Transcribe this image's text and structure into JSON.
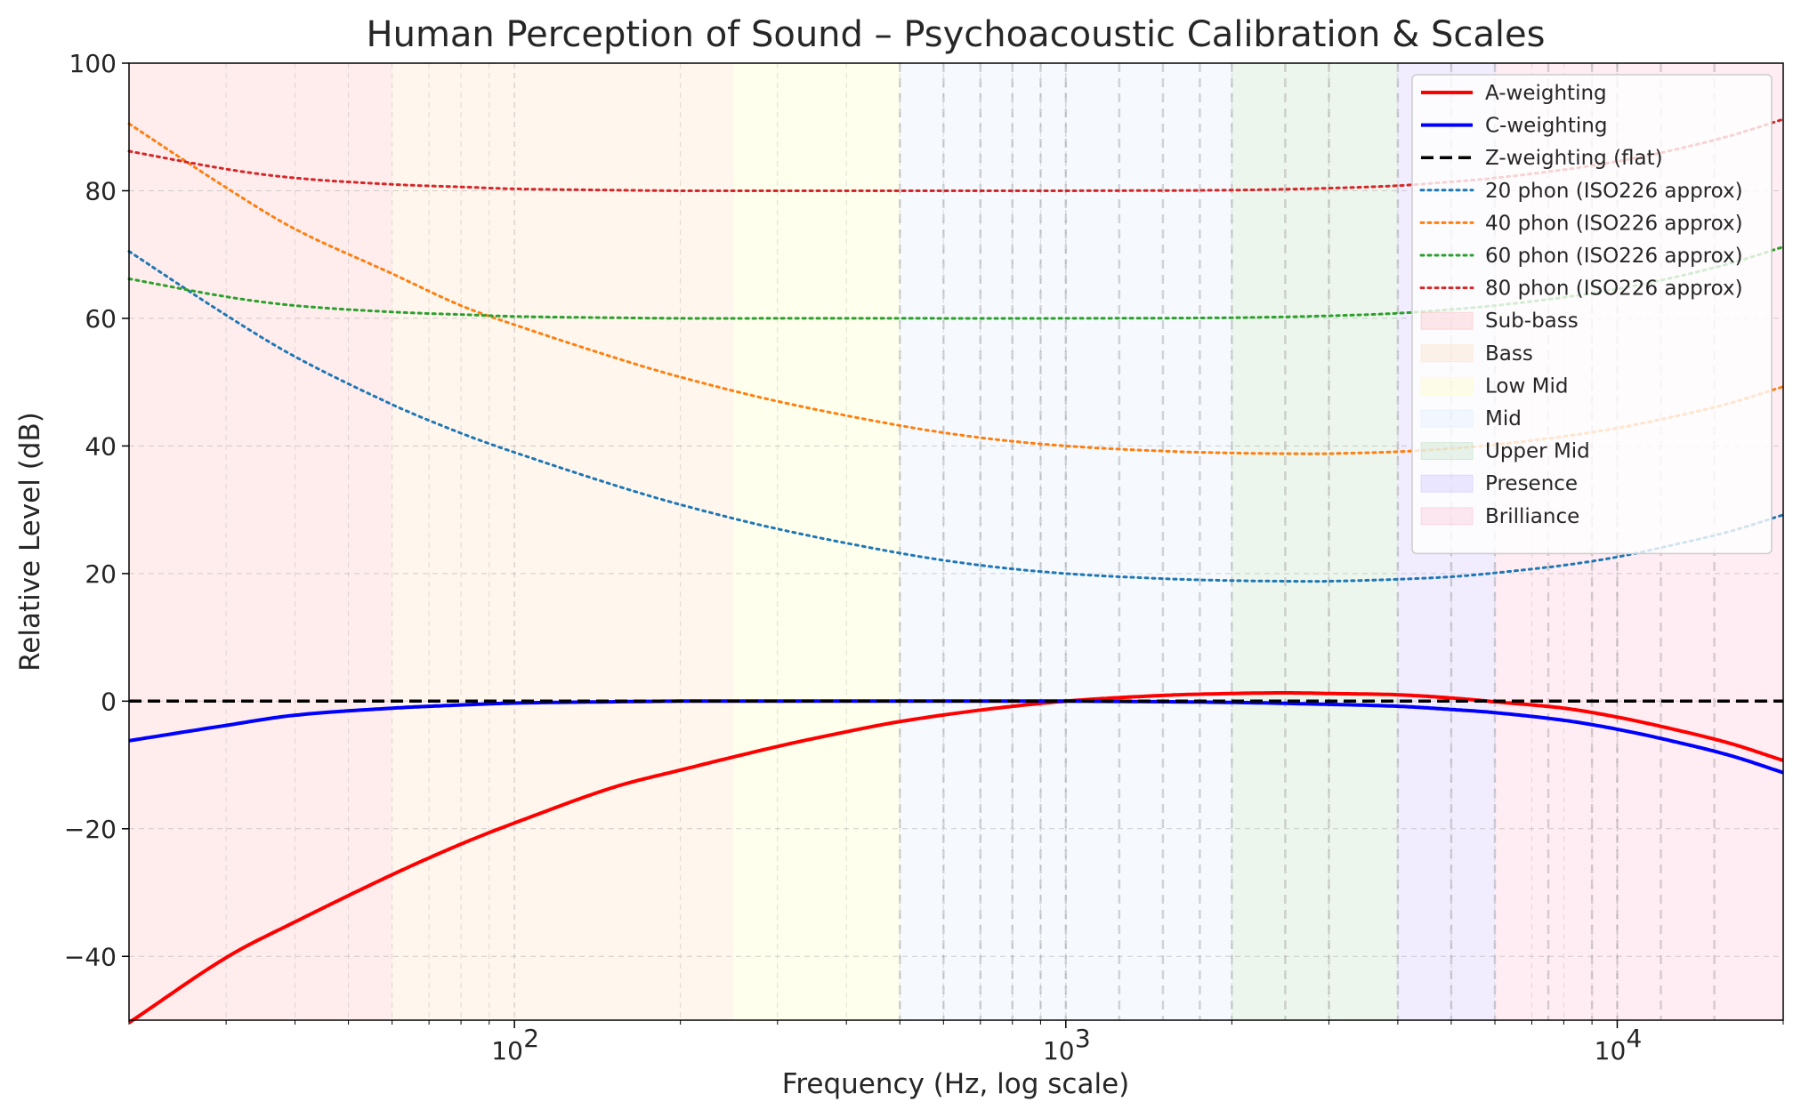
{
  "chart_data": {
    "type": "line",
    "title": "Human Perception of Sound – Psychoacoustic Calibration & Scales",
    "xlabel": "Frequency (Hz, log scale)",
    "ylabel": "Relative Level (dB)",
    "xscale": "log",
    "xlim": [
      20,
      20000
    ],
    "ylim": [
      -50,
      100
    ],
    "yticks": [
      -40,
      -20,
      0,
      20,
      40,
      60,
      80,
      100
    ],
    "ytick_labels": [
      "−40",
      "−20",
      "0",
      "20",
      "40",
      "60",
      "80",
      "100"
    ],
    "xticks": [
      {
        "value": 100,
        "base": "10",
        "exp": "2"
      },
      {
        "value": 1000,
        "base": "10",
        "exp": "3"
      },
      {
        "value": 10000,
        "base": "10",
        "exp": "4"
      }
    ],
    "grid": true,
    "legend_position": "top-right",
    "bands": [
      {
        "name": "Sub-bass",
        "from": 20,
        "to": 60,
        "color": "#ff9999"
      },
      {
        "name": "Bass",
        "from": 60,
        "to": 250,
        "color": "#ffcc99"
      },
      {
        "name": "Low Mid",
        "from": 250,
        "to": 500,
        "color": "#ffff99"
      },
      {
        "name": "Mid",
        "from": 500,
        "to": 2000,
        "color": "#cce5ff"
      },
      {
        "name": "Upper Mid",
        "from": 2000,
        "to": 4000,
        "color": "#99cc99"
      },
      {
        "name": "Presence",
        "from": 4000,
        "to": 6000,
        "color": "#b399ff"
      },
      {
        "name": "Brilliance",
        "from": 6000,
        "to": 20000,
        "color": "#ff99bb"
      }
    ],
    "series": [
      {
        "name": "A-weighting",
        "color": "#ff0000",
        "style": "solid",
        "x": [
          20,
          30,
          40,
          60,
          80,
          100,
          150,
          200,
          300,
          400,
          500,
          700,
          1000,
          1500,
          2000,
          2500,
          3000,
          4000,
          5000,
          6000,
          8000,
          10000,
          12500,
          16000,
          20000
        ],
        "y": [
          -50.4,
          -40.2,
          -34.6,
          -27.2,
          -22.4,
          -19.1,
          -13.6,
          -10.8,
          -7.1,
          -4.8,
          -3.2,
          -1.4,
          0.0,
          0.9,
          1.2,
          1.3,
          1.2,
          1.0,
          0.5,
          -0.1,
          -1.1,
          -2.5,
          -4.3,
          -6.6,
          -9.3
        ]
      },
      {
        "name": "C-weighting",
        "color": "#0000ff",
        "style": "solid",
        "x": [
          20,
          30,
          40,
          60,
          80,
          100,
          150,
          200,
          300,
          500,
          1000,
          2000,
          3000,
          4000,
          5000,
          6000,
          8000,
          10000,
          12500,
          16000,
          20000
        ],
        "y": [
          -6.2,
          -3.8,
          -2.2,
          -1.1,
          -0.6,
          -0.3,
          -0.1,
          0.0,
          0.0,
          0.0,
          0.0,
          -0.2,
          -0.5,
          -0.8,
          -1.3,
          -1.8,
          -3.0,
          -4.4,
          -6.2,
          -8.5,
          -11.2
        ]
      },
      {
        "name": "Z-weighting (flat)",
        "color": "#000000",
        "style": "dashed",
        "x": [
          20,
          20000
        ],
        "y": [
          0,
          0
        ]
      },
      {
        "name": "20 phon (ISO226 approx)",
        "color": "#1f77b4",
        "style": "dotted",
        "x": [
          20,
          30,
          40,
          60,
          80,
          100,
          150,
          200,
          300,
          500,
          700,
          1000,
          1500,
          2000,
          2500,
          3000,
          4000,
          5000,
          6000,
          8000,
          10000,
          12500,
          16000,
          20000
        ],
        "y": [
          70.5,
          60.5,
          54.0,
          46.5,
          42.0,
          39.0,
          34.0,
          30.8,
          27.0,
          23.2,
          21.3,
          20.0,
          19.2,
          18.9,
          18.8,
          18.8,
          19.1,
          19.5,
          20.1,
          21.3,
          22.6,
          24.4,
          26.6,
          29.2
        ]
      },
      {
        "name": "40 phon (ISO226 approx)",
        "color": "#ff7f0e",
        "style": "dotted",
        "x": [
          20,
          30,
          40,
          60,
          80,
          100,
          150,
          200,
          300,
          500,
          700,
          1000,
          1500,
          2000,
          2500,
          3000,
          4000,
          5000,
          6000,
          8000,
          10000,
          12500,
          16000,
          20000
        ],
        "y": [
          90.5,
          80.5,
          74.0,
          67.0,
          62.0,
          59.0,
          54.0,
          50.8,
          47.0,
          43.2,
          41.3,
          40.0,
          39.2,
          38.9,
          38.8,
          38.8,
          39.1,
          39.6,
          40.2,
          41.5,
          42.8,
          44.5,
          46.7,
          49.3
        ]
      },
      {
        "name": "60 phon (ISO226 approx)",
        "color": "#2ca02c",
        "style": "dotted",
        "x": [
          20,
          30,
          40,
          60,
          80,
          100,
          150,
          200,
          300,
          500,
          1000,
          2000,
          3000,
          4000,
          5000,
          6000,
          8000,
          10000,
          12500,
          16000,
          20000
        ],
        "y": [
          66.2,
          63.4,
          62.0,
          61.0,
          60.6,
          60.3,
          60.1,
          60.0,
          60.0,
          60.0,
          60.0,
          60.1,
          60.4,
          60.8,
          61.4,
          62.0,
          63.3,
          64.6,
          66.3,
          68.6,
          71.2
        ]
      },
      {
        "name": "80 phon (ISO226 approx)",
        "color": "#d62728",
        "style": "dotted",
        "x": [
          20,
          30,
          40,
          60,
          80,
          100,
          150,
          200,
          300,
          500,
          1000,
          2000,
          3000,
          4000,
          5000,
          6000,
          8000,
          10000,
          12500,
          16000,
          20000
        ],
        "y": [
          86.2,
          83.4,
          82.0,
          81.0,
          80.6,
          80.3,
          80.1,
          80.0,
          80.0,
          80.0,
          80.0,
          80.1,
          80.4,
          80.8,
          81.4,
          82.0,
          83.3,
          84.6,
          86.3,
          88.6,
          91.2
        ]
      }
    ],
    "vlines": [
      500,
      600,
      700,
      800,
      900,
      1000,
      1250,
      1500,
      1750,
      2000,
      2500,
      3000,
      4000,
      5000,
      6000,
      7500,
      9000,
      10000,
      12000,
      15000
    ]
  }
}
